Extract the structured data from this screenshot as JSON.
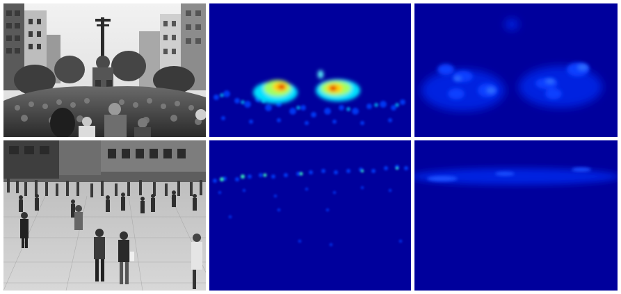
{
  "figure": {
    "rows": [
      {
        "scene": "crowd-parade-street",
        "panels": [
          "photo",
          "density-map-sharp",
          "density-map-smooth"
        ]
      },
      {
        "scene": "pedestrian-plaza",
        "panels": [
          "photo",
          "density-map-sharp",
          "density-map-smooth"
        ]
      }
    ],
    "colors": {
      "heatmap_background": "#00009c",
      "heatmap_low": "#0033ff",
      "heatmap_mid": "#00ffff",
      "heatmap_high": "#ffff00",
      "heatmap_peak": "#ff0000",
      "photo_tone": "grayscale"
    }
  }
}
